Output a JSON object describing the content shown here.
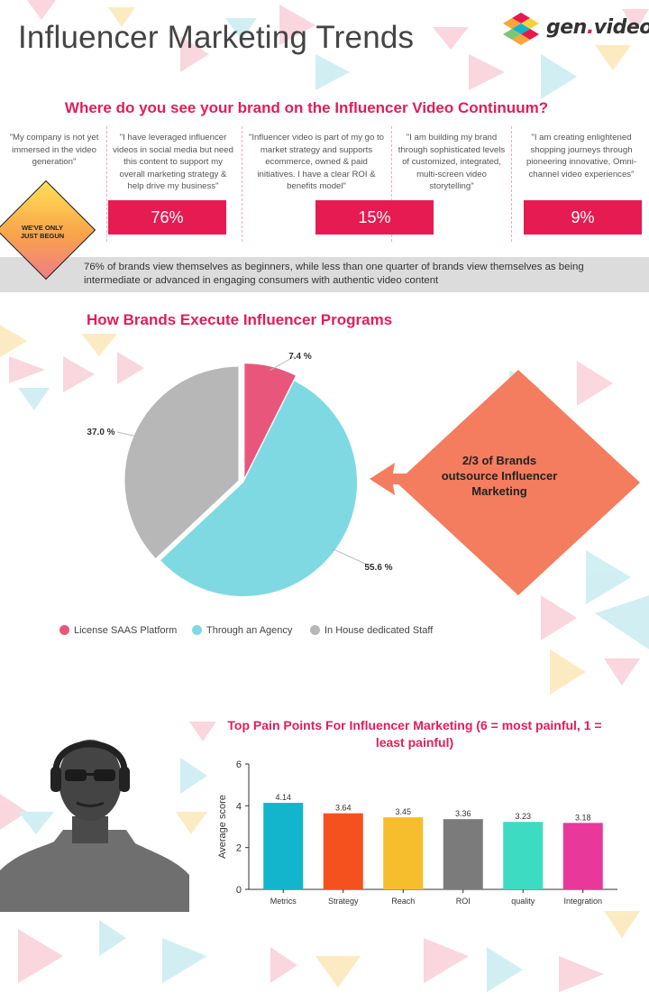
{
  "header": {
    "title": "Influencer Marketing Trends",
    "logo_prefix": "gen",
    "logo_suffix": "video",
    "logo_dot": "."
  },
  "continuum": {
    "title": "Where do you see your brand on the Influencer Video Continuum?",
    "quotes": [
      "\"My company is not yet immersed in the video generation\"",
      "\"I have leveraged influencer videos in social media but need this content to support my overall marketing strategy & help drive my business\"",
      "\"Influencer video is part of my go to market strategy and supports ecommerce, owned & paid initiatives. I have a clear ROI & benefits model\"",
      "\"I am building my brand through sophisticated levels of customized, integrated, multi-screen video storytelling\"",
      "\"I am creating enlightened shopping journeys through pioneering innovative, Omni-channel video experiences\""
    ],
    "percentages": [
      "76%",
      "15%",
      "9%"
    ],
    "badge": "WE'VE ONLY JUST BEGUN",
    "summary": "76% of brands view themselves as beginners, while less than one quarter of brands view themselves as being intermediate or advanced in engaging consumers with authentic video content"
  },
  "programs": {
    "title": "How Brands Execute Influencer Programs",
    "callout": "2/3 of Brands outsource Influencer Marketing"
  },
  "pain": {
    "title": "Top Pain Points For Influencer Marketing (6 = most painful, 1 = least painful)"
  },
  "colors": {
    "accent": "#e61b52",
    "summary_band": "#dcdcdc",
    "callout": "#f47c5f"
  },
  "chart_data": [
    {
      "type": "pie",
      "title": "How Brands Execute Influencer Programs",
      "categories": [
        "License SAAS Platform",
        "Through an Agency",
        "In House dedicated Staff"
      ],
      "values": [
        7.4,
        55.6,
        37.0
      ],
      "labels": [
        "7.4 %",
        "55.6 %",
        "37.0 %"
      ],
      "colors": [
        "#e8577b",
        "#7fd9e2",
        "#b7b7b7"
      ],
      "legend": "bottom"
    },
    {
      "type": "bar",
      "title": "Top Pain Points For Influencer Marketing (6 = most painful, 1 = least painful)",
      "categories": [
        "Metrics",
        "Strategy",
        "Reach",
        "ROI",
        "quality",
        "Integration"
      ],
      "values": [
        4.14,
        3.64,
        3.45,
        3.36,
        3.23,
        3.18
      ],
      "value_labels": [
        "4.14",
        "3.64",
        "3.45",
        "3.36",
        "3.23",
        "3.18"
      ],
      "ylabel": "Average score",
      "ylim": [
        0,
        6
      ],
      "yticks": [
        0,
        2,
        4,
        6
      ],
      "colors": [
        "#12b5cb",
        "#f4511e",
        "#f6be2c",
        "#7b7b7b",
        "#3ddbc2",
        "#e8389a"
      ],
      "grid": false
    }
  ]
}
